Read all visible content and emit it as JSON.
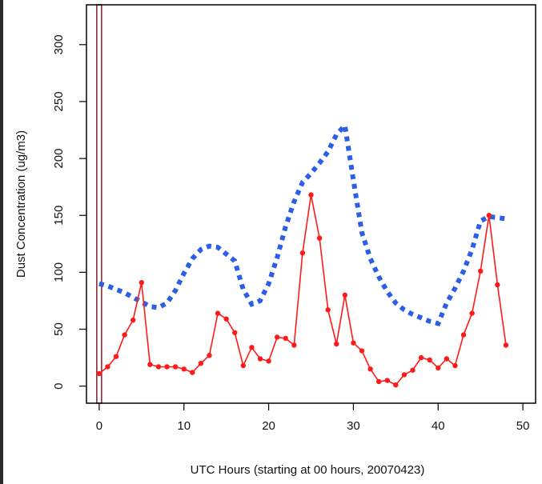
{
  "chart_data": {
    "type": "line",
    "title": "",
    "xlabel": "UTC Hours (starting at 00 hours, 20070423)",
    "ylabel": "Dust Concentration (ug/m3)",
    "xlim": [
      -1.5,
      51.5
    ],
    "ylim": [
      -15,
      335
    ],
    "xticks": [
      0,
      10,
      20,
      30,
      40,
      50
    ],
    "yticks": [
      0,
      50,
      100,
      150,
      200,
      250,
      300
    ],
    "grid": false,
    "legend": "none",
    "marker_line": {
      "x": 0,
      "color": "#7a1f2b"
    },
    "series": [
      {
        "style": "dotted",
        "color": "#2b5fe6",
        "x": [
          0,
          1,
          2,
          3,
          4,
          5,
          6,
          7,
          8,
          9,
          10,
          11,
          12,
          13,
          14,
          15,
          16,
          17,
          18,
          19,
          20,
          21,
          22,
          23,
          24,
          25,
          26,
          27,
          28,
          29,
          30,
          31,
          32,
          33,
          34,
          35,
          36,
          37,
          38,
          39,
          40,
          41,
          42,
          43,
          44,
          45,
          46,
          47,
          48
        ],
        "values": [
          90,
          88,
          85,
          82,
          78,
          74,
          70,
          69,
          73,
          84,
          99,
          112,
          120,
          123,
          122,
          116,
          110,
          85,
          72,
          75,
          90,
          113,
          140,
          162,
          179,
          187,
          196,
          206,
          221,
          229,
          181,
          135,
          112,
          96,
          83,
          73,
          67,
          63,
          60,
          57,
          55,
          73,
          86,
          101,
          120,
          145,
          149,
          148,
          147
        ]
      },
      {
        "style": "solid",
        "color": "#ff1a1a",
        "x": [
          0,
          1,
          2,
          3,
          4,
          5,
          6,
          7,
          8,
          9,
          10,
          11,
          12,
          13,
          14,
          15,
          16,
          17,
          18,
          19,
          20,
          21,
          22,
          23,
          24,
          25,
          26,
          27,
          28,
          29,
          30,
          31,
          32,
          33,
          34,
          35,
          36,
          37,
          38,
          39,
          40,
          41,
          42,
          43,
          44,
          45,
          46,
          47,
          48
        ],
        "values": [
          11,
          17,
          26,
          45,
          58,
          91,
          19,
          17,
          17,
          17,
          15,
          12,
          20,
          27,
          64,
          59,
          47,
          18,
          34,
          24,
          22,
          43,
          42,
          36,
          117,
          168,
          130,
          67,
          37,
          80,
          38,
          31,
          15,
          4,
          5,
          1,
          10,
          14,
          25,
          23,
          16,
          24,
          18,
          45,
          64,
          101,
          150,
          89,
          36
        ]
      }
    ]
  }
}
